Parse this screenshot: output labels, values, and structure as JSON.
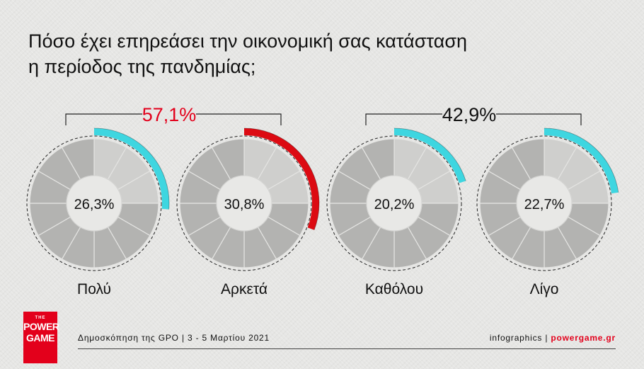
{
  "title": {
    "line1": "Πόσο έχει επηρεάσει την οικονομική σας κατάσταση",
    "line2": "η περίοδος της πανδημίας;"
  },
  "chart_data": {
    "type": "donut",
    "title": "Πόσο έχει επηρεάσει την οικονομική σας κατάσταση η περίοδος της πανδημίας;",
    "categories": [
      "Πολύ",
      "Αρκετά",
      "Καθόλου",
      "Λίγο"
    ],
    "values": [
      26.3,
      30.8,
      20.2,
      22.7
    ],
    "value_labels": [
      "26,3%",
      "30,8%",
      "20,2%",
      "22,7%"
    ],
    "colors": [
      "#3ed6e0",
      "#dc0a12",
      "#3ed6e0",
      "#3ed6e0"
    ],
    "groups": [
      {
        "label": "57,1%",
        "members": [
          0,
          1
        ],
        "color": "#e3001b"
      },
      {
        "label": "42,9%",
        "members": [
          2,
          3
        ],
        "color": "#111111"
      }
    ]
  },
  "footer": {
    "source": "Δημοσκόπηση της GPO |  3 - 5 Μαρτίου 2021",
    "credit_prefix": "infographics | ",
    "credit_site": "powergame.gr"
  },
  "logo": {
    "small": "THE",
    "line1": "POWER",
    "line2": "GAME"
  }
}
